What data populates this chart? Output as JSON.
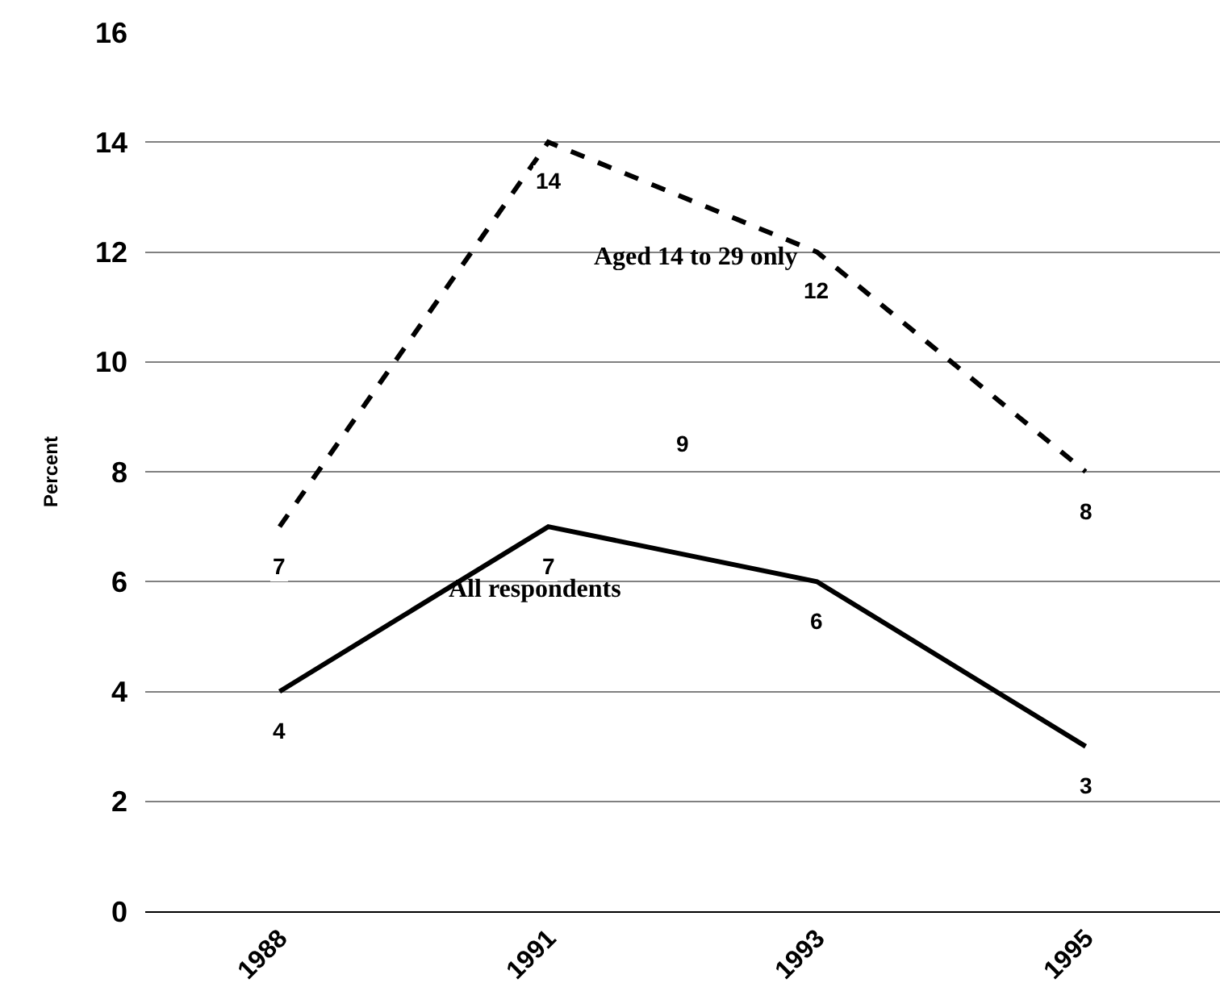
{
  "chart_data": {
    "type": "line",
    "ylabel": "Percent",
    "categories": [
      "1988",
      "1991",
      "1993",
      "1995"
    ],
    "series": [
      {
        "name": "Aged 14 to 29 only",
        "color": "#000000",
        "line_style": "dashed",
        "values": [
          7,
          14,
          12,
          8
        ]
      },
      {
        "name": "All respondents",
        "color": "#000000",
        "line_style": "solid",
        "values": [
          4,
          7,
          6,
          3
        ]
      }
    ],
    "ylim": [
      0,
      16
    ],
    "yticks": [
      0,
      2,
      4,
      6,
      8,
      10,
      12,
      14,
      16
    ],
    "grid": "y",
    "legend": false,
    "marker": "none",
    "data_labels": true,
    "annotations": [
      "9"
    ]
  }
}
